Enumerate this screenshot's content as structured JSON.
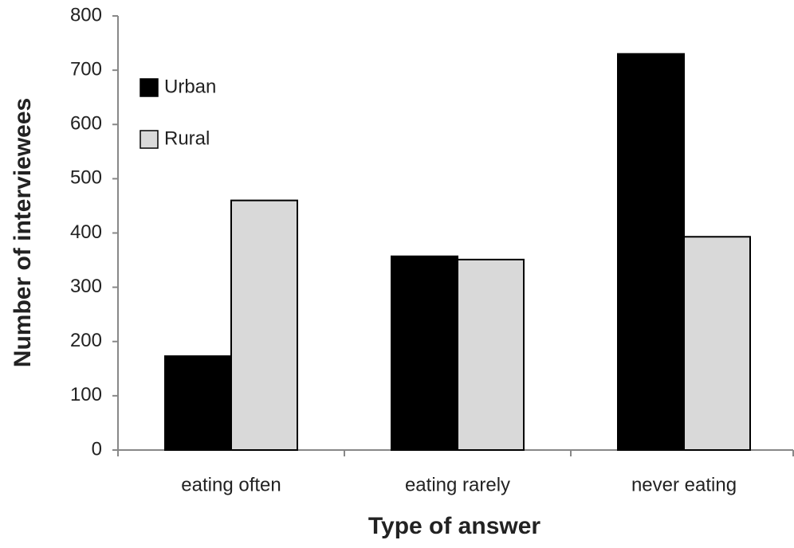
{
  "chart_data": {
    "type": "bar",
    "x_label": "Type of answer",
    "y_label": "Number of interviewees",
    "categories": [
      "eating often",
      "eating rarely",
      "never eating"
    ],
    "series": [
      {
        "name": "Urban",
        "color": "#000000",
        "values": [
          173,
          357,
          730
        ]
      },
      {
        "name": "Rural",
        "color": "#d9d9d9",
        "values": [
          460,
          351,
          393
        ]
      }
    ],
    "ylim": [
      0,
      800
    ],
    "yticks": [
      0,
      100,
      200,
      300,
      400,
      500,
      600,
      700,
      800
    ],
    "grid": false,
    "legend": "upper left"
  }
}
